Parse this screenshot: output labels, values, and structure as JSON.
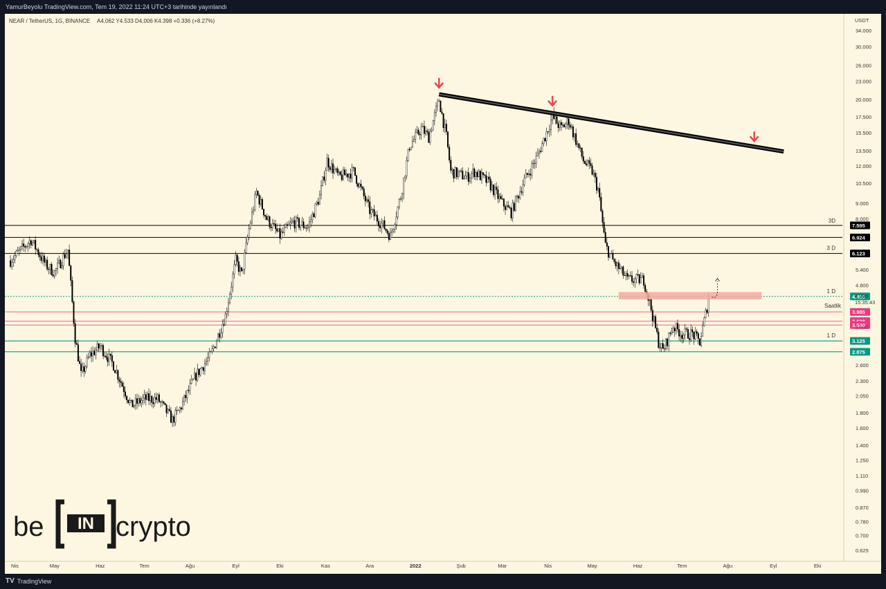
{
  "header": {
    "publish_line": "YamurBeyolu TradingView.com, Tem 19, 2022 11:24 UTC+3 tarihinde yayınlandı"
  },
  "symbol": {
    "legend": "NEAR / TetherUS, 1G, BINANCE",
    "ohlc": "A4.062  Y4.533  D4.006  K4.398  +0.336 (+8.27%)"
  },
  "axis": {
    "currency": "USDT",
    "price_ticks": [
      "34.000",
      "30.000",
      "26.000",
      "23.000",
      "20.000",
      "17.500",
      "15.500",
      "13.500",
      "12.000",
      "10.500",
      "9.000",
      "8.000",
      "5.400",
      "4.800",
      "2.600",
      "2.300",
      "2.050",
      "1.800",
      "1.600",
      "1.400",
      "1.250",
      "1.110",
      "0.990",
      "0.870",
      "0.780",
      "0.700",
      "0.625"
    ],
    "time_labels": [
      "Nis",
      "May",
      "Haz",
      "Tem",
      "Ağu",
      "Eyl",
      "Eki",
      "Kas",
      "Ara",
      "2022",
      "Şub",
      "Mar",
      "Nis",
      "May",
      "Haz",
      "Tem",
      "Ağu",
      "Eyl",
      "Eki"
    ]
  },
  "price_badges": [
    {
      "label": "7.595",
      "color": "#000000"
    },
    {
      "label": "6.924",
      "color": "#000000"
    },
    {
      "label": "6.123",
      "color": "#000000"
    },
    {
      "label": "4.400",
      "color": "#089981"
    },
    {
      "label": "3.905",
      "color": "#f23680"
    },
    {
      "label": "3.638",
      "color": "#f23680"
    },
    {
      "label": "3.530",
      "color": "#f23680"
    },
    {
      "label": "3.125",
      "color": "#089981"
    },
    {
      "label": "2.875",
      "color": "#089981"
    }
  ],
  "current": {
    "price": "4.398",
    "countdown": "15:35:43",
    "partial_tick": "3.500"
  },
  "level_tags": {
    "l7595": "3D",
    "l6123": "3 D",
    "l4400": "1 D",
    "l3125": "1 D",
    "saatlik": "Saatlik"
  },
  "chart_data": {
    "type": "candlestick",
    "title": "NEAR / TetherUS, 1G, BINANCE",
    "scale": "log",
    "ylim": [
      0.6,
      38
    ],
    "x_range": [
      "2021-04-01",
      "2022-10-31"
    ],
    "horizontal_levels": [
      7.595,
      6.924,
      6.123,
      4.4,
      3.905,
      3.638,
      3.53,
      3.125,
      2.875
    ],
    "resistance_zone": [
      4.3,
      4.55
    ],
    "trendline": [
      {
        "date": "2022-01-17",
        "price": 20.8
      },
      {
        "date": "2022-09-08",
        "price": 13.4
      }
    ],
    "down_arrows": [
      {
        "date": "2022-01-17",
        "price": 22.5
      },
      {
        "date": "2022-04-04",
        "price": 19.6
      },
      {
        "date": "2022-08-19",
        "price": 14.9
      }
    ],
    "projection_path_to": 5.05,
    "series": [
      {
        "values": [
          [
            "2021-04-01",
            5.8
          ],
          [
            "2021-04-15",
            6.8
          ],
          [
            "2021-04-25",
            5.6
          ],
          [
            "2021-05-01",
            5.3
          ],
          [
            "2021-05-10",
            6.3
          ],
          [
            "2021-05-15",
            3.2
          ],
          [
            "2021-05-19",
            2.4
          ],
          [
            "2021-05-25",
            2.8
          ],
          [
            "2021-06-01",
            3.0
          ],
          [
            "2021-06-10",
            2.6
          ],
          [
            "2021-06-22",
            1.9
          ],
          [
            "2021-07-01",
            2.0
          ],
          [
            "2021-07-10",
            2.0
          ],
          [
            "2021-07-20",
            1.7
          ],
          [
            "2021-07-25",
            1.85
          ],
          [
            "2021-08-05",
            2.4
          ],
          [
            "2021-08-15",
            2.8
          ],
          [
            "2021-08-25",
            3.8
          ],
          [
            "2021-09-01",
            5.8
          ],
          [
            "2021-09-05",
            5.2
          ],
          [
            "2021-09-10",
            7.4
          ],
          [
            "2021-09-15",
            9.8
          ],
          [
            "2021-09-22",
            8.0
          ],
          [
            "2021-10-01",
            7.0
          ],
          [
            "2021-10-10",
            7.8
          ],
          [
            "2021-10-20",
            7.5
          ],
          [
            "2021-10-28",
            9.5
          ],
          [
            "2021-11-02",
            12.5
          ],
          [
            "2021-11-10",
            11.0
          ],
          [
            "2021-11-20",
            11.5
          ],
          [
            "2021-12-01",
            8.5
          ],
          [
            "2021-12-10",
            7.6
          ],
          [
            "2021-12-15",
            7.0
          ],
          [
            "2021-12-22",
            9.5
          ],
          [
            "2021-12-28",
            14.0
          ],
          [
            "2022-01-05",
            16.0
          ],
          [
            "2022-01-10",
            15.0
          ],
          [
            "2022-01-17",
            20.0
          ],
          [
            "2022-01-22",
            15.0
          ],
          [
            "2022-01-25",
            11.5
          ],
          [
            "2022-02-05",
            11.0
          ],
          [
            "2022-02-10",
            11.5
          ],
          [
            "2022-02-20",
            10.5
          ],
          [
            "2022-03-01",
            9.0
          ],
          [
            "2022-03-07",
            8.4
          ],
          [
            "2022-03-15",
            10.5
          ],
          [
            "2022-03-25",
            13.0
          ],
          [
            "2022-04-01",
            16.0
          ],
          [
            "2022-04-04",
            17.5
          ],
          [
            "2022-04-10",
            16.0
          ],
          [
            "2022-04-15",
            17.0
          ],
          [
            "2022-04-25",
            12.5
          ],
          [
            "2022-05-01",
            11.5
          ],
          [
            "2022-05-05",
            10.0
          ],
          [
            "2022-05-10",
            6.5
          ],
          [
            "2022-05-15",
            5.8
          ],
          [
            "2022-05-25",
            5.0
          ],
          [
            "2022-06-05",
            5.0
          ],
          [
            "2022-06-10",
            4.0
          ],
          [
            "2022-06-15",
            3.1
          ],
          [
            "2022-06-18",
            2.9
          ],
          [
            "2022-06-25",
            3.5
          ],
          [
            "2022-07-01",
            3.3
          ],
          [
            "2022-07-08",
            3.3
          ],
          [
            "2022-07-13",
            3.1
          ],
          [
            "2022-07-18",
            4.06
          ],
          [
            "2022-07-19",
            4.398
          ]
        ]
      }
    ]
  },
  "branding": {
    "left": "be",
    "middle": "IN",
    "right": "crypto",
    "footer": "TradingView",
    "footer_icon": "TV"
  }
}
